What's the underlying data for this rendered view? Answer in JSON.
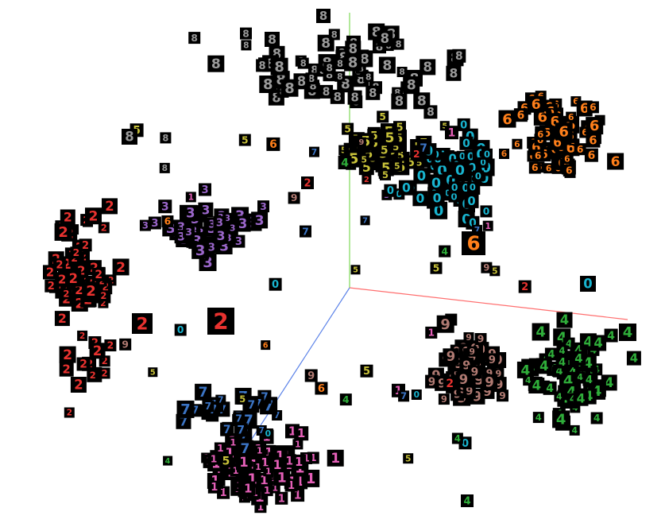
{
  "scene": {
    "background": "#ffffff",
    "tile_color": "#000000",
    "axes": [
      {
        "name": "x",
        "color": "#ff6f6f"
      },
      {
        "name": "y",
        "color": "#7fd957"
      },
      {
        "name": "z",
        "color": "#5b82e8"
      }
    ],
    "digit_colors": {
      "0": "#18b4cf",
      "1": "#e45fb7",
      "2": "#e8322f",
      "3": "#9a66c9",
      "4": "#2fae3a",
      "5": "#c8c23a",
      "6": "#ff7f1a",
      "7": "#3b74c4",
      "8": "#9a9a9a",
      "9": "#b07a72"
    }
  }
}
